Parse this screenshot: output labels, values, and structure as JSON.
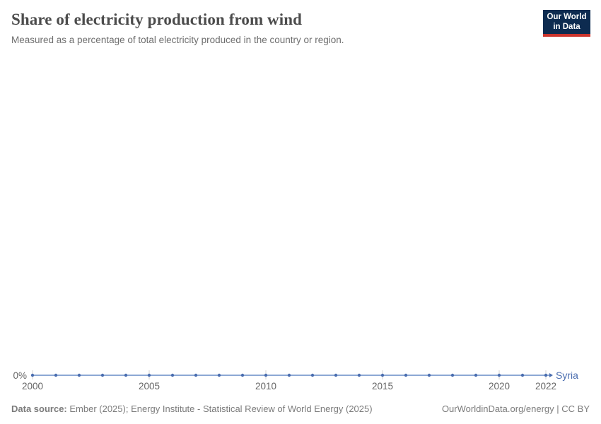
{
  "header": {
    "title": "Share of electricity production from wind",
    "subtitle": "Measured as a percentage of total electricity produced in the country or region.",
    "logo": {
      "line1": "Our World",
      "line2": "in Data",
      "background_color": "#0d2b50",
      "accent_color": "#cb342d"
    }
  },
  "chart_data": {
    "type": "line",
    "title": "Share of electricity production from wind",
    "subtitle": "Measured as a percentage of total electricity produced in the country or region.",
    "entity": "Syria",
    "unit": "%",
    "x": [
      2000,
      2001,
      2002,
      2003,
      2004,
      2005,
      2006,
      2007,
      2008,
      2009,
      2010,
      2011,
      2012,
      2013,
      2014,
      2015,
      2016,
      2017,
      2018,
      2019,
      2020,
      2021,
      2022
    ],
    "values": [
      0,
      0,
      0,
      0,
      0,
      0,
      0,
      0,
      0,
      0,
      0,
      0,
      0,
      0,
      0,
      0,
      0,
      0,
      0,
      0,
      0,
      0,
      0
    ],
    "xlim": [
      2000,
      2022
    ],
    "x_ticks": [
      2000,
      2005,
      2010,
      2015,
      2020,
      2022
    ],
    "x_tick_labels": [
      "2000",
      "2005",
      "2010",
      "2015",
      "2020",
      "2022"
    ],
    "y_axis_label": "0%",
    "grid": false,
    "legend_position": "end-of-line",
    "line_color": "#7d9cce",
    "marker_color": "#4a6daf",
    "entity_label_color": "#4a6daf",
    "tick_color": "#d2d2d2",
    "axis_label_color": "#666666"
  },
  "footer": {
    "datasource_label": "Data source:",
    "datasource_text": " Ember (2025); Energy Institute - Statistical Review of World Energy (2025)",
    "link_text": "OurWorldinData.org/energy | CC BY"
  }
}
